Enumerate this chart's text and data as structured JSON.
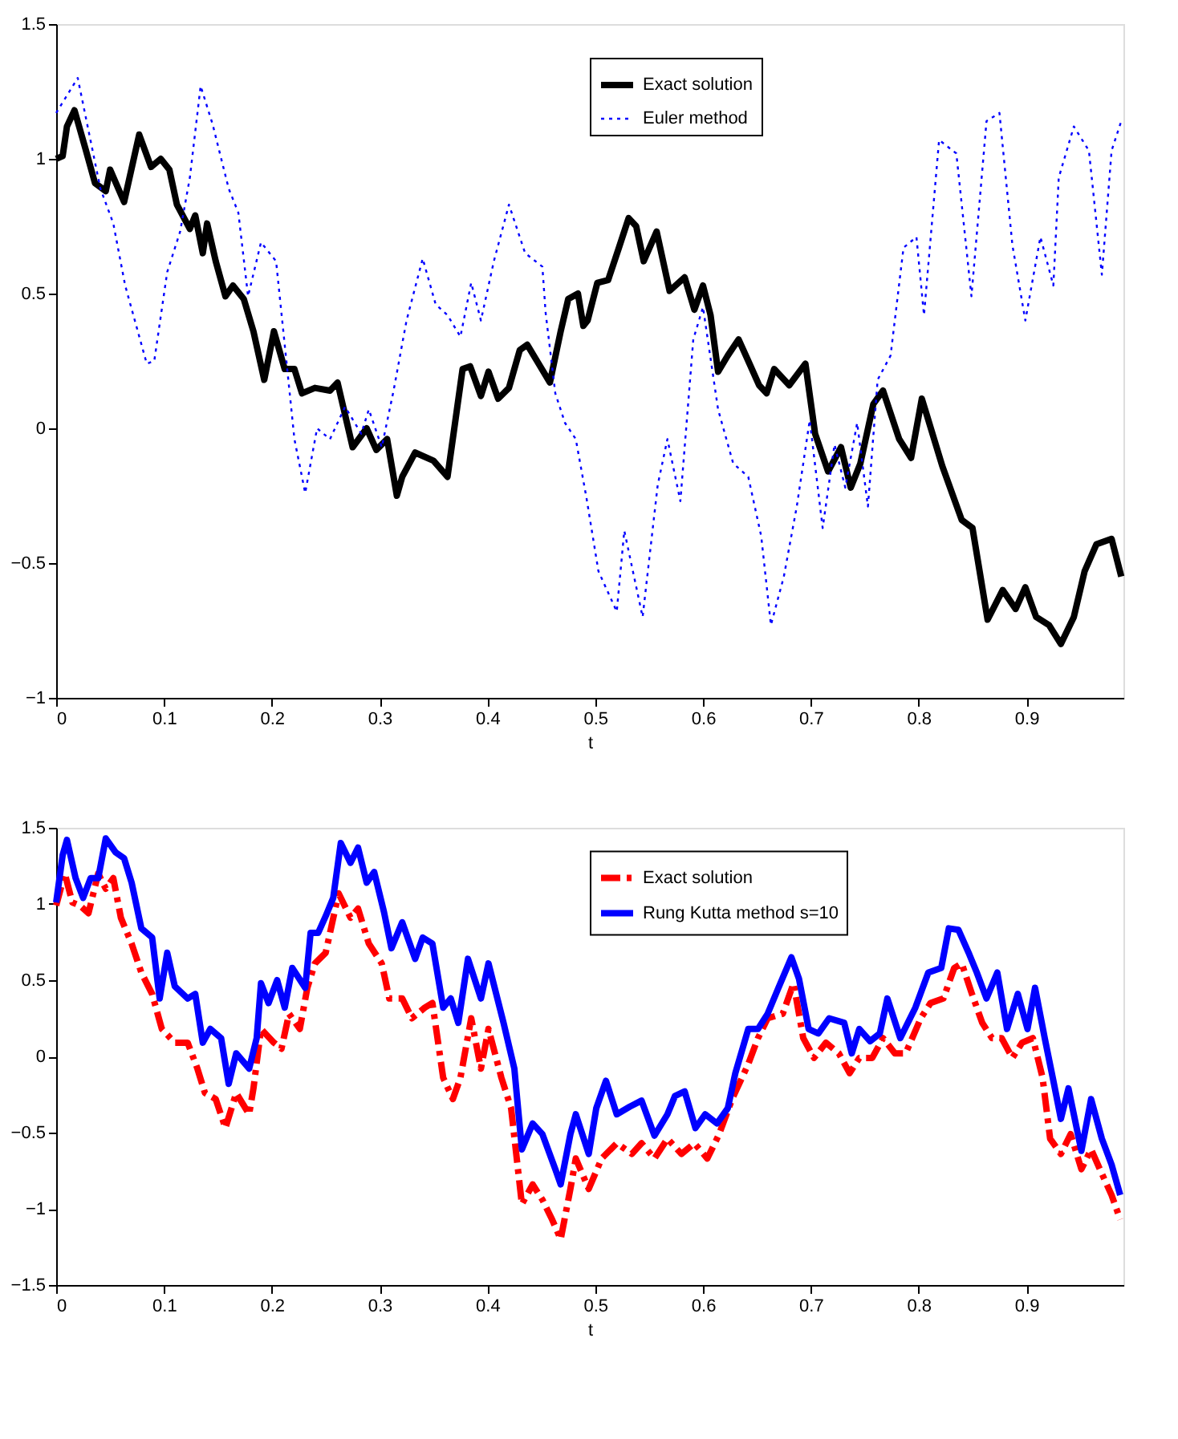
{
  "chart_data": [
    {
      "type": "line",
      "xlabel": "t",
      "xlim": [
        0,
        0.99
      ],
      "xticks": [
        0,
        0.1,
        0.2,
        0.3,
        0.4,
        0.5,
        0.6,
        0.7,
        0.8,
        0.9
      ],
      "ylim": [
        -1,
        1.5
      ],
      "yticks": [
        -1,
        -0.5,
        0,
        0.5,
        1,
        1.5
      ],
      "grid": false,
      "legend": "top right",
      "marker": "none",
      "series": [
        {
          "name": "Exact solution",
          "color": "#000000",
          "line_style": "solid",
          "x": [
            0,
            0.006,
            0.01,
            0.017,
            0.027,
            0.036,
            0.046,
            0.05,
            0.063,
            0.077,
            0.088,
            0.097,
            0.105,
            0.112,
            0.124,
            0.129,
            0.136,
            0.14,
            0.148,
            0.157,
            0.164,
            0.174,
            0.183,
            0.193,
            0.202,
            0.212,
            0.221,
            0.228,
            0.24,
            0.254,
            0.261,
            0.275,
            0.288,
            0.297,
            0.307,
            0.316,
            0.321,
            0.333,
            0.35,
            0.363,
            0.377,
            0.384,
            0.394,
            0.401,
            0.41,
            0.42,
            0.43,
            0.437,
            0.446,
            0.458,
            0.468,
            0.475,
            0.484,
            0.489,
            0.493,
            0.502,
            0.512,
            0.522,
            0.531,
            0.538,
            0.545,
            0.557,
            0.569,
            0.583,
            0.592,
            0.6,
            0.607,
            0.614,
            0.623,
            0.633,
            0.642,
            0.652,
            0.659,
            0.666,
            0.68,
            0.695,
            0.704,
            0.716,
            0.728,
            0.737,
            0.746,
            0.758,
            0.767,
            0.782,
            0.793,
            0.803,
            0.822,
            0.84,
            0.85,
            0.864,
            0.878,
            0.89,
            0.899,
            0.909,
            0.921,
            0.932,
            0.944,
            0.954,
            0.965,
            0.979,
            0.988
          ],
          "values": [
            1.0,
            1.01,
            1.12,
            1.18,
            1.04,
            0.91,
            0.88,
            0.96,
            0.84,
            1.09,
            0.97,
            1.0,
            0.96,
            0.83,
            0.74,
            0.79,
            0.65,
            0.76,
            0.62,
            0.49,
            0.53,
            0.48,
            0.36,
            0.18,
            0.36,
            0.22,
            0.22,
            0.13,
            0.15,
            0.14,
            0.17,
            -0.07,
            0.0,
            -0.08,
            -0.04,
            -0.25,
            -0.18,
            -0.09,
            -0.12,
            -0.18,
            0.22,
            0.23,
            0.12,
            0.21,
            0.11,
            0.15,
            0.29,
            0.31,
            0.25,
            0.17,
            0.36,
            0.48,
            0.5,
            0.38,
            0.4,
            0.54,
            0.55,
            0.67,
            0.78,
            0.75,
            0.62,
            0.73,
            0.51,
            0.56,
            0.44,
            0.53,
            0.42,
            0.21,
            0.27,
            0.33,
            0.25,
            0.16,
            0.13,
            0.22,
            0.16,
            0.24,
            -0.02,
            -0.16,
            -0.07,
            -0.22,
            -0.13,
            0.09,
            0.14,
            -0.04,
            -0.11,
            0.11,
            -0.14,
            -0.34,
            -0.37,
            -0.71,
            -0.6,
            -0.67,
            -0.59,
            -0.7,
            -0.73,
            -0.8,
            -0.7,
            -0.53,
            -0.43,
            -0.41,
            -0.55
          ]
        },
        {
          "name": "Euler method",
          "color": "#0000ff",
          "line_style": "dotted",
          "x": [
            0,
            0.02,
            0.041,
            0.053,
            0.064,
            0.084,
            0.091,
            0.103,
            0.115,
            0.124,
            0.134,
            0.145,
            0.16,
            0.169,
            0.178,
            0.19,
            0.204,
            0.212,
            0.221,
            0.231,
            0.242,
            0.254,
            0.268,
            0.283,
            0.29,
            0.302,
            0.313,
            0.325,
            0.34,
            0.352,
            0.363,
            0.375,
            0.385,
            0.394,
            0.406,
            0.42,
            0.435,
            0.451,
            0.454,
            0.463,
            0.472,
            0.482,
            0.492,
            0.503,
            0.52,
            0.527,
            0.544,
            0.558,
            0.567,
            0.579,
            0.591,
            0.6,
            0.614,
            0.628,
            0.642,
            0.654,
            0.663,
            0.675,
            0.687,
            0.699,
            0.711,
            0.722,
            0.732,
            0.743,
            0.753,
            0.762,
            0.774,
            0.786,
            0.798,
            0.805,
            0.819,
            0.835,
            0.849,
            0.863,
            0.875,
            0.887,
            0.899,
            0.913,
            0.925,
            0.93,
            0.944,
            0.958,
            0.97,
            0.979,
            0.988
          ],
          "values": [
            1.17,
            1.3,
            0.89,
            0.76,
            0.53,
            0.24,
            0.25,
            0.58,
            0.73,
            0.93,
            1.27,
            1.13,
            0.89,
            0.8,
            0.49,
            0.69,
            0.62,
            0.31,
            -0.04,
            -0.24,
            0.0,
            -0.04,
            0.08,
            -0.02,
            0.07,
            -0.07,
            0.14,
            0.4,
            0.63,
            0.46,
            0.42,
            0.34,
            0.54,
            0.4,
            0.62,
            0.83,
            0.65,
            0.6,
            0.43,
            0.13,
            0.02,
            -0.04,
            -0.26,
            -0.53,
            -0.68,
            -0.38,
            -0.7,
            -0.21,
            -0.04,
            -0.27,
            0.33,
            0.45,
            0.07,
            -0.13,
            -0.18,
            -0.4,
            -0.73,
            -0.55,
            -0.29,
            0.03,
            -0.37,
            -0.06,
            -0.22,
            0.02,
            -0.29,
            0.18,
            0.27,
            0.67,
            0.71,
            0.42,
            1.07,
            1.02,
            0.49,
            1.14,
            1.17,
            0.68,
            0.4,
            0.71,
            0.53,
            0.93,
            1.12,
            1.03,
            0.57,
            1.03,
            1.14
          ]
        }
      ]
    },
    {
      "type": "line",
      "xlabel": "t",
      "xlim": [
        0,
        0.99
      ],
      "xticks": [
        0,
        0.1,
        0.2,
        0.3,
        0.4,
        0.5,
        0.6,
        0.7,
        0.8,
        0.9
      ],
      "ylim": [
        -1.5,
        1.5
      ],
      "yticks": [
        -1.5,
        -1,
        -0.5,
        0,
        0.5,
        1,
        1.5
      ],
      "grid": false,
      "legend": "top right",
      "marker": "none",
      "series": [
        {
          "name": "Exact solution",
          "color": "#ff0000",
          "line_style": "dashed",
          "x": [
            0,
            0.008,
            0.015,
            0.022,
            0.03,
            0.039,
            0.046,
            0.053,
            0.06,
            0.07,
            0.079,
            0.089,
            0.098,
            0.11,
            0.122,
            0.131,
            0.138,
            0.148,
            0.157,
            0.167,
            0.179,
            0.183,
            0.19,
            0.202,
            0.209,
            0.216,
            0.226,
            0.233,
            0.24,
            0.25,
            0.262,
            0.273,
            0.28,
            0.29,
            0.302,
            0.309,
            0.321,
            0.33,
            0.342,
            0.349,
            0.359,
            0.368,
            0.375,
            0.385,
            0.394,
            0.401,
            0.413,
            0.422,
            0.432,
            0.442,
            0.451,
            0.46,
            0.468,
            0.477,
            0.482,
            0.494,
            0.506,
            0.52,
            0.534,
            0.543,
            0.555,
            0.567,
            0.58,
            0.592,
            0.604,
            0.615,
            0.627,
            0.642,
            0.651,
            0.66,
            0.674,
            0.684,
            0.693,
            0.703,
            0.714,
            0.726,
            0.736,
            0.745,
            0.757,
            0.767,
            0.778,
            0.788,
            0.802,
            0.811,
            0.823,
            0.833,
            0.84,
            0.849,
            0.859,
            0.868,
            0.877,
            0.887,
            0.896,
            0.906,
            0.915,
            0.922,
            0.932,
            0.941,
            0.951,
            0.96,
            0.97,
            0.979,
            0.987
          ],
          "values": [
            0.99,
            1.2,
            1.01,
            0.99,
            0.94,
            1.2,
            1.1,
            1.17,
            0.91,
            0.74,
            0.55,
            0.41,
            0.18,
            0.09,
            0.09,
            -0.08,
            -0.24,
            -0.28,
            -0.47,
            -0.24,
            -0.38,
            -0.21,
            0.18,
            0.09,
            0.05,
            0.28,
            0.18,
            0.45,
            0.61,
            0.68,
            1.07,
            0.91,
            0.97,
            0.74,
            0.61,
            0.38,
            0.38,
            0.25,
            0.32,
            0.35,
            -0.14,
            -0.28,
            -0.14,
            0.25,
            -0.08,
            0.18,
            -0.14,
            -0.34,
            -0.97,
            -0.84,
            -0.94,
            -1.07,
            -1.2,
            -0.87,
            -0.67,
            -0.87,
            -0.67,
            -0.57,
            -0.64,
            -0.57,
            -0.67,
            -0.54,
            -0.64,
            -0.57,
            -0.67,
            -0.51,
            -0.28,
            -0.05,
            0.12,
            0.25,
            0.28,
            0.48,
            0.12,
            -0.01,
            0.09,
            0.02,
            -0.11,
            -0.01,
            -0.01,
            0.12,
            0.02,
            0.02,
            0.25,
            0.35,
            0.38,
            0.58,
            0.61,
            0.42,
            0.22,
            0.12,
            0.12,
            -0.01,
            0.09,
            0.12,
            -0.14,
            -0.54,
            -0.64,
            -0.51,
            -0.74,
            -0.61,
            -0.77,
            -0.91,
            -1.07
          ]
        },
        {
          "name": "Rung Kutta method s=10",
          "color": "#0000ff",
          "line_style": "solid",
          "x": [
            0,
            0.006,
            0.01,
            0.018,
            0.025,
            0.032,
            0.039,
            0.046,
            0.055,
            0.063,
            0.07,
            0.079,
            0.089,
            0.096,
            0.103,
            0.11,
            0.122,
            0.129,
            0.136,
            0.143,
            0.153,
            0.16,
            0.167,
            0.179,
            0.186,
            0.19,
            0.197,
            0.205,
            0.212,
            0.219,
            0.231,
            0.236,
            0.243,
            0.25,
            0.257,
            0.264,
            0.273,
            0.28,
            0.288,
            0.295,
            0.304,
            0.311,
            0.321,
            0.333,
            0.34,
            0.349,
            0.359,
            0.366,
            0.373,
            0.382,
            0.394,
            0.401,
            0.415,
            0.425,
            0.432,
            0.442,
            0.451,
            0.463,
            0.468,
            0.477,
            0.482,
            0.494,
            0.501,
            0.51,
            0.52,
            0.532,
            0.543,
            0.555,
            0.567,
            0.574,
            0.583,
            0.593,
            0.602,
            0.613,
            0.623,
            0.63,
            0.642,
            0.651,
            0.66,
            0.67,
            0.682,
            0.689,
            0.698,
            0.707,
            0.717,
            0.731,
            0.738,
            0.745,
            0.755,
            0.764,
            0.771,
            0.783,
            0.797,
            0.809,
            0.821,
            0.828,
            0.837,
            0.847,
            0.854,
            0.863,
            0.873,
            0.882,
            0.892,
            0.901,
            0.908,
            0.917,
            0.925,
            0.932,
            0.939,
            0.951,
            0.96,
            0.97,
            0.979,
            0.987
          ],
          "values": [
            1.01,
            1.32,
            1.42,
            1.17,
            1.04,
            1.17,
            1.17,
            1.43,
            1.34,
            1.3,
            1.14,
            0.84,
            0.78,
            0.38,
            0.68,
            0.46,
            0.38,
            0.41,
            0.09,
            0.18,
            0.12,
            -0.18,
            0.02,
            -0.08,
            0.12,
            0.48,
            0.35,
            0.5,
            0.32,
            0.58,
            0.45,
            0.81,
            0.81,
            0.92,
            1.04,
            1.4,
            1.27,
            1.37,
            1.14,
            1.21,
            0.95,
            0.71,
            0.88,
            0.64,
            0.78,
            0.74,
            0.32,
            0.38,
            0.22,
            0.64,
            0.38,
            0.61,
            0.22,
            -0.08,
            -0.61,
            -0.44,
            -0.51,
            -0.74,
            -0.84,
            -0.51,
            -0.38,
            -0.64,
            -0.34,
            -0.16,
            -0.38,
            -0.33,
            -0.29,
            -0.52,
            -0.38,
            -0.26,
            -0.23,
            -0.47,
            -0.38,
            -0.44,
            -0.34,
            -0.11,
            0.18,
            0.18,
            0.28,
            0.45,
            0.65,
            0.51,
            0.18,
            0.15,
            0.25,
            0.22,
            0.02,
            0.18,
            0.1,
            0.15,
            0.38,
            0.12,
            0.32,
            0.55,
            0.58,
            0.84,
            0.83,
            0.67,
            0.55,
            0.38,
            0.55,
            0.18,
            0.41,
            0.18,
            0.45,
            0.12,
            -0.16,
            -0.41,
            -0.21,
            -0.62,
            -0.28,
            -0.54,
            -0.71,
            -0.91
          ]
        }
      ]
    }
  ]
}
